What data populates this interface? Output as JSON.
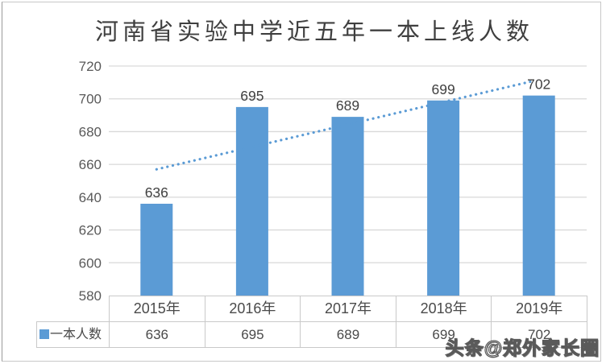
{
  "watermark": {
    "text": "头条@郑外家长圈"
  },
  "colors": {
    "bar": "#5B9BD5",
    "trendline": "#5B9BD5",
    "gridline": "#D9D9D9",
    "table_border": "#C9C9C9",
    "axis_text": "#595959",
    "label_text": "#404040",
    "title_text": "#3F3F3F"
  },
  "chart_data": {
    "type": "bar",
    "title": "河南省实验中学近五年一本上线人数",
    "categories": [
      "2015年",
      "2016年",
      "2017年",
      "2018年",
      "2019年"
    ],
    "series": [
      {
        "name": "一本人数",
        "values": [
          636,
          695,
          689,
          699,
          702
        ]
      }
    ],
    "data_labels": [
      "636",
      "695",
      "689",
      "699",
      "702"
    ],
    "table_values": [
      "636",
      "695",
      "689",
      "699",
      "702"
    ],
    "legend_label": "一本人数",
    "ylim": [
      580,
      720
    ],
    "ytick_step": 20,
    "yticks": [
      "580",
      "600",
      "620",
      "640",
      "660",
      "680",
      "700",
      "720"
    ],
    "grid": true,
    "legend_position": "data-table-left",
    "trendline": {
      "style": "dotted",
      "start_value": 657,
      "end_value": 711
    }
  }
}
